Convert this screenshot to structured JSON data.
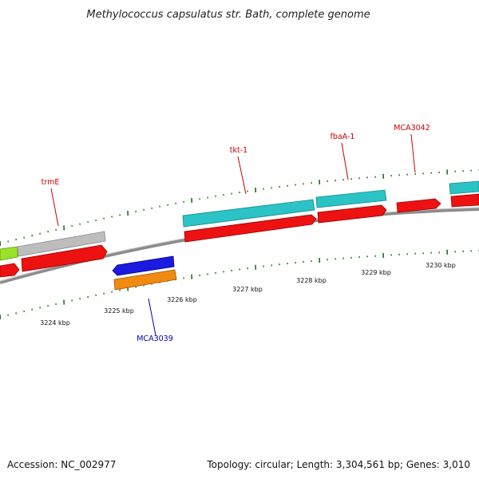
{
  "title": "Methylococcus capsulatus str. Bath, complete genome",
  "footer": {
    "accession": "Accession: NC_002977",
    "summary": "Topology: circular; Length: 3,304,561 bp; Genes: 3,010"
  },
  "colors": {
    "backbone": "#8c8c8c",
    "tick": "#1e6e1e",
    "label_red": "#cc0000",
    "label_blue": "#0000aa"
  },
  "ticks": [
    {
      "label": "3224 kbp"
    },
    {
      "label": "3225 kbp"
    },
    {
      "label": "3226 kbp"
    },
    {
      "label": "3227 kbp"
    },
    {
      "label": "3228 kbp"
    },
    {
      "label": "3229 kbp"
    },
    {
      "label": "3230 kbp"
    }
  ],
  "gene_labels": [
    {
      "text": "trmE",
      "color": "#cc0000"
    },
    {
      "text": "tkt-1",
      "color": "#cc0000"
    },
    {
      "text": "fbaA-1",
      "color": "#cc0000"
    },
    {
      "text": "MCA3042",
      "color": "#cc0000"
    },
    {
      "text": "MCA3039",
      "color": "#0000aa"
    }
  ],
  "features": [
    {
      "name": "lime",
      "color": "#9be22a"
    },
    {
      "name": "gray",
      "color": "#bdbdbd"
    },
    {
      "name": "cyan",
      "color": "#2bc3c6"
    },
    {
      "name": "red",
      "color": "#ee1111"
    },
    {
      "name": "blue",
      "color": "#1a1ae0"
    },
    {
      "name": "orange",
      "color": "#f08a10"
    }
  ]
}
